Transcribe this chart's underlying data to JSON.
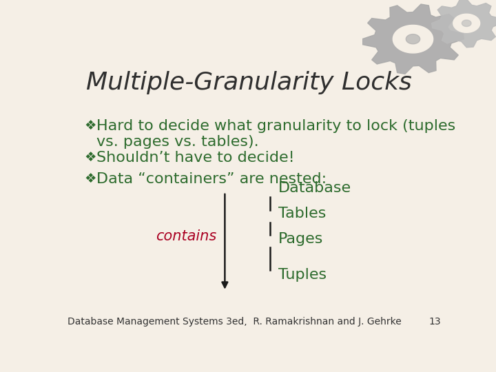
{
  "title": "Multiple-Granularity Locks",
  "title_color": "#2F2F2F",
  "title_style": "italic",
  "title_fontsize": 26,
  "bg_color": "#F5EFE6",
  "bullet_color": "#2D6B2D",
  "bullet_fontsize": 16,
  "contains_color": "#AA0022",
  "contains_fontsize": 15,
  "hierarchy_color": "#2D6B2D",
  "hierarchy_fontsize": 16,
  "arrow_color": "#1A1A1A",
  "footer_text": "Database Management Systems 3ed,  R. Ramakrishnan and J. Gehrke",
  "footer_page": "13",
  "footer_fontsize": 10,
  "footer_color": "#333333",
  "bullet_symbol": "❖",
  "bullets": [
    "Hard to decide what granularity to lock (tuples\nvs. pages vs. tables).",
    "Shouldn’t have to decide!",
    "Data “containers” are nested:"
  ],
  "hierarchy_items": [
    "Database",
    "Tables",
    "Pages",
    "Tuples"
  ],
  "gear_color1": "#AAAAAA",
  "gear_color2": "#BBBBBB"
}
